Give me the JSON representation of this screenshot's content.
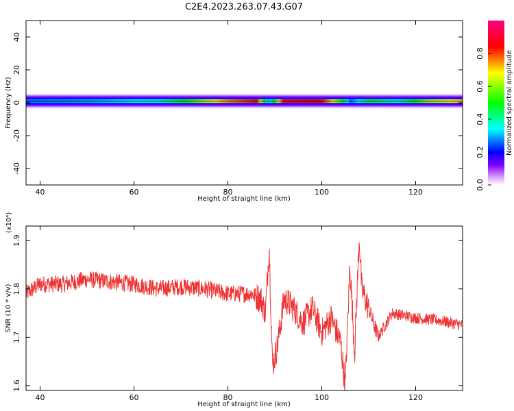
{
  "title": "C2E4.2023.263.07.43.G07",
  "chart_data": [
    {
      "type": "heatmap",
      "xlabel": "Height of straight line (km)",
      "ylabel": "Frequency (Hz)",
      "xlim": [
        37,
        130
      ],
      "ylim": [
        -50,
        50
      ],
      "xticks": [
        40,
        60,
        80,
        100,
        120
      ],
      "yticks": [
        -40,
        -20,
        0,
        20,
        40
      ],
      "colorbar": {
        "label": "Normalized spectral amplitude",
        "range": [
          0.0,
          1.0
        ],
        "ticks": [
          "0.0",
          "0.2",
          "0.4",
          "0.6",
          "0.8"
        ],
        "tick_values": [
          0.0,
          0.2,
          0.4,
          0.6,
          0.8
        ],
        "colors": [
          "#ffffff",
          "#8000ff",
          "#0000ff",
          "#00ffff",
          "#00ff00",
          "#ffff00",
          "#ff0000",
          "#ff0080"
        ]
      },
      "band": {
        "center_hz": 1,
        "half_width_hz": 5,
        "peak_by_height": [
          {
            "x": 37,
            "amp": 0.35
          },
          {
            "x": 50,
            "amp": 0.38
          },
          {
            "x": 65,
            "amp": 0.45
          },
          {
            "x": 72,
            "amp": 0.6
          },
          {
            "x": 80,
            "amp": 0.78
          },
          {
            "x": 86,
            "amp": 0.85
          },
          {
            "x": 88.5,
            "amp": 0.4
          },
          {
            "x": 92,
            "amp": 0.9
          },
          {
            "x": 100,
            "amp": 0.85
          },
          {
            "x": 104,
            "amp": 0.6
          },
          {
            "x": 106,
            "amp": 0.35
          },
          {
            "x": 110,
            "amp": 0.55
          },
          {
            "x": 116,
            "amp": 0.45
          },
          {
            "x": 122,
            "amp": 0.65
          },
          {
            "x": 130,
            "amp": 0.75
          }
        ]
      }
    },
    {
      "type": "line",
      "xlabel": "Height of straight line (km)",
      "ylabel": "SNR (10 * v/v)",
      "yscale_label": "(x10⁴)",
      "xlim": [
        37,
        130
      ],
      "ylim": [
        1.59,
        1.93
      ],
      "xticks": [
        40,
        60,
        80,
        100,
        120
      ],
      "yticks": [
        1.6,
        1.7,
        1.8,
        1.9
      ],
      "series": [
        {
          "color": "#ee3333",
          "x": [
            37,
            40,
            45,
            50,
            55,
            60,
            65,
            70,
            75,
            80,
            85,
            87,
            88,
            88.8,
            89.5,
            90.5,
            92,
            94,
            96,
            98,
            100,
            102,
            104,
            105,
            106,
            107,
            108,
            108.5,
            110,
            112,
            115,
            120,
            125,
            130
          ],
          "y": [
            1.79,
            1.81,
            1.81,
            1.82,
            1.815,
            1.81,
            1.8,
            1.805,
            1.8,
            1.79,
            1.79,
            1.78,
            1.75,
            1.89,
            1.64,
            1.68,
            1.78,
            1.76,
            1.73,
            1.76,
            1.71,
            1.74,
            1.69,
            1.6,
            1.85,
            1.67,
            1.91,
            1.8,
            1.76,
            1.7,
            1.75,
            1.74,
            1.735,
            1.725
          ]
        }
      ]
    }
  ]
}
